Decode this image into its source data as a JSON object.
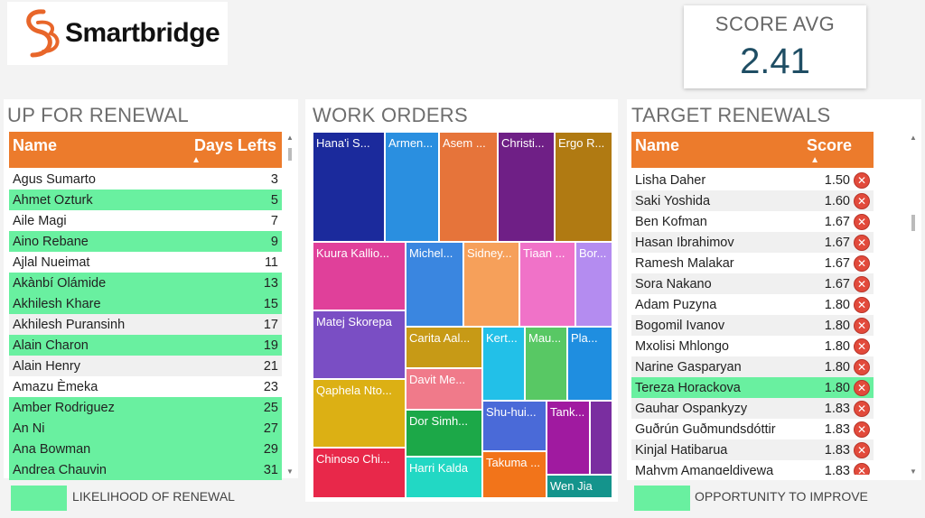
{
  "logo": {
    "text": "Smartbridge"
  },
  "score_avg": {
    "label": "SCORE AVG",
    "value": "2.41"
  },
  "renewal": {
    "title": "UP FOR RENEWAL",
    "col_name": "Name",
    "col_days": "Days Lefts",
    "rows": [
      {
        "name": "Agus Sumarto",
        "days": "3",
        "hl": false
      },
      {
        "name": "Ahmet Ozturk",
        "days": "5",
        "hl": true
      },
      {
        "name": "Aile Magi",
        "days": "7",
        "hl": false
      },
      {
        "name": "Aino Rebane",
        "days": "9",
        "hl": true
      },
      {
        "name": "Ajlal Nueimat",
        "days": "11",
        "hl": false
      },
      {
        "name": "Akànbí Olámide",
        "days": "13",
        "hl": true
      },
      {
        "name": "Akhilesh Khare",
        "days": "15",
        "hl": true
      },
      {
        "name": "Akhilesh Puransinh",
        "days": "17",
        "hl": false
      },
      {
        "name": "Alain Charon",
        "days": "19",
        "hl": true
      },
      {
        "name": "Alain Henry",
        "days": "21",
        "hl": false
      },
      {
        "name": "Amazu Èmeka",
        "days": "23",
        "hl": false
      },
      {
        "name": "Amber Rodriguez",
        "days": "25",
        "hl": true
      },
      {
        "name": "An Ni",
        "days": "27",
        "hl": true
      },
      {
        "name": "Ana Bowman",
        "days": "29",
        "hl": true
      },
      {
        "name": "Andrea Chauvin",
        "days": "31",
        "hl": true
      }
    ],
    "legend": "LIKELIHOOD OF RENEWAL"
  },
  "work_orders": {
    "title": "WORK ORDERS",
    "tiles": [
      {
        "label": "Hana'i S...",
        "color": "#1b2a9c"
      },
      {
        "label": "Armen...",
        "color": "#2a8fe0"
      },
      {
        "label": "Asem ...",
        "color": "#e6743a"
      },
      {
        "label": "Christi...",
        "color": "#6f1f86"
      },
      {
        "label": "Ergo R...",
        "color": "#b07a12"
      },
      {
        "label": "Kuura Kallio...",
        "color": "#e0409a"
      },
      {
        "label": "Michel...",
        "color": "#3a86e0"
      },
      {
        "label": "Sidney...",
        "color": "#f6a05a"
      },
      {
        "label": "Tiaan ...",
        "color": "#f072c8"
      },
      {
        "label": "Bor...",
        "color": "#b48cf0"
      },
      {
        "label": "Matej Skorepa",
        "color": "#7a4ec4"
      },
      {
        "label": "Carita Aal...",
        "color": "#c79a16"
      },
      {
        "label": "Kert...",
        "color": "#22c0e8"
      },
      {
        "label": "Mau...",
        "color": "#58c864"
      },
      {
        "label": "Pla...",
        "color": "#1f8ee0"
      },
      {
        "label": "Qaphela Nto...",
        "color": "#dcb014"
      },
      {
        "label": "Davit Me...",
        "color": "#f07a8a"
      },
      {
        "label": "Dor Simh...",
        "color": "#1ca848"
      },
      {
        "label": "Shu-hui...",
        "color": "#4a6ad8"
      },
      {
        "label": "Tank...",
        "color": "#a01aa0"
      },
      {
        "label": "Chinoso Chi...",
        "color": "#e8284a"
      },
      {
        "label": "Harri Kalda",
        "color": "#22d8c4"
      },
      {
        "label": "Takuma ...",
        "color": "#f2741a"
      },
      {
        "label": "Wen Jia",
        "color": "#14948c"
      }
    ]
  },
  "target": {
    "title": "TARGET RENEWALS",
    "col_name": "Name",
    "col_score": "Score",
    "rows": [
      {
        "name": "Lisha Daher",
        "score": "1.50",
        "hl": false
      },
      {
        "name": "Saki Yoshida",
        "score": "1.60",
        "hl": false
      },
      {
        "name": "Ben Kofman",
        "score": "1.67",
        "hl": false
      },
      {
        "name": "Hasan Ibrahimov",
        "score": "1.67",
        "hl": false
      },
      {
        "name": "Ramesh Malakar",
        "score": "1.67",
        "hl": false
      },
      {
        "name": "Sora Nakano",
        "score": "1.67",
        "hl": false
      },
      {
        "name": "Adam Puzyna",
        "score": "1.80",
        "hl": false
      },
      {
        "name": "Bogomil Ivanov",
        "score": "1.80",
        "hl": false
      },
      {
        "name": "Mxolisi Mhlongo",
        "score": "1.80",
        "hl": false
      },
      {
        "name": "Narine Gasparyan",
        "score": "1.80",
        "hl": false
      },
      {
        "name": "Tereza Horackova",
        "score": "1.80",
        "hl": true
      },
      {
        "name": "Gauhar Ospankyzy",
        "score": "1.83",
        "hl": false
      },
      {
        "name": "Guðrún Guðmundsdóttir",
        "score": "1.83",
        "hl": false
      },
      {
        "name": "Kinjal Hatibarua",
        "score": "1.83",
        "hl": false
      },
      {
        "name": "Mahym Amangeldiyewa",
        "score": "1.83",
        "hl": false
      }
    ],
    "legend": "OPPORTUNITY TO IMPROVE"
  },
  "colors": {
    "accent": "#ec7b2c",
    "highlight": "#69f0a0",
    "score_value": "#1f4e64",
    "danger": "#e24a3b"
  }
}
